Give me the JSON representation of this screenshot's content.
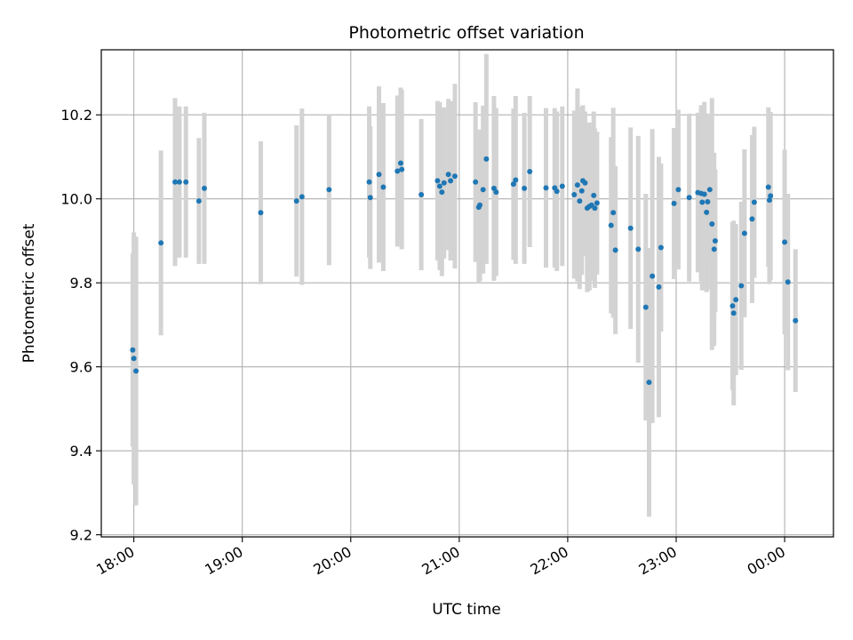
{
  "chart_data": {
    "type": "scatter",
    "title": "Photometric offset variation",
    "xlabel": "UTC time",
    "ylabel": "Photometric offset",
    "x_unit": "hours since 18:00 UTC",
    "xlim": [
      -0.3,
      6.45
    ],
    "ylim": [
      9.195,
      10.355
    ],
    "grid": true,
    "x_ticks": [
      {
        "value": 0,
        "label": "18:00"
      },
      {
        "value": 1,
        "label": "19:00"
      },
      {
        "value": 2,
        "label": "20:00"
      },
      {
        "value": 3,
        "label": "21:00"
      },
      {
        "value": 4,
        "label": "22:00"
      },
      {
        "value": 5,
        "label": "23:00"
      },
      {
        "value": 6,
        "label": "00:00"
      }
    ],
    "y_ticks": [
      {
        "value": 9.2,
        "label": "9.2"
      },
      {
        "value": 9.4,
        "label": "9.4"
      },
      {
        "value": 9.6,
        "label": "9.6"
      },
      {
        "value": 9.8,
        "label": "9.8"
      },
      {
        "value": 10.0,
        "label": "10.0"
      },
      {
        "value": 10.2,
        "label": "10.2"
      }
    ],
    "colors": {
      "marker": "#1f77b4",
      "errorbar": "#d3d3d3",
      "grid": "#b0b0b0"
    },
    "series": [
      {
        "name": "offset",
        "x": [
          -0.01,
          0.0,
          0.02,
          0.25,
          0.38,
          0.42,
          0.48,
          0.6,
          0.65,
          1.17,
          1.5,
          1.55,
          1.8,
          2.17,
          2.18,
          2.26,
          2.3,
          2.43,
          2.46,
          2.47,
          2.65,
          2.8,
          2.82,
          2.84,
          2.86,
          2.9,
          2.92,
          2.96,
          3.15,
          3.18,
          3.19,
          3.22,
          3.25,
          3.32,
          3.34,
          3.5,
          3.52,
          3.6,
          3.65,
          3.8,
          3.88,
          3.9,
          3.95,
          4.06,
          4.09,
          4.11,
          4.13,
          4.14,
          4.16,
          4.18,
          4.2,
          4.22,
          4.24,
          4.25,
          4.27,
          4.4,
          4.42,
          4.44,
          4.58,
          4.65,
          4.72,
          4.75,
          4.78,
          4.84,
          4.86,
          4.98,
          5.02,
          5.12,
          5.2,
          5.23,
          5.24,
          5.26,
          5.28,
          5.29,
          5.31,
          5.33,
          5.35,
          5.36,
          5.52,
          5.53,
          5.55,
          5.6,
          5.63,
          5.7,
          5.72,
          5.85,
          5.86,
          5.87,
          6.0,
          6.03,
          6.1
        ],
        "y": [
          9.64,
          9.62,
          9.59,
          9.895,
          10.04,
          10.04,
          10.04,
          9.995,
          10.025,
          9.967,
          9.995,
          10.005,
          10.022,
          10.04,
          10.003,
          10.058,
          10.028,
          10.066,
          10.085,
          10.07,
          10.01,
          10.043,
          10.03,
          10.016,
          10.038,
          10.058,
          10.043,
          10.054,
          10.04,
          9.98,
          9.985,
          10.022,
          10.095,
          10.025,
          10.016,
          10.035,
          10.045,
          10.025,
          10.065,
          10.026,
          10.026,
          10.018,
          10.03,
          10.01,
          10.033,
          9.995,
          10.019,
          10.043,
          10.038,
          9.978,
          9.982,
          9.985,
          10.008,
          9.978,
          9.99,
          9.937,
          9.967,
          9.878,
          9.93,
          9.88,
          9.742,
          9.563,
          9.816,
          9.79,
          9.884,
          9.989,
          10.022,
          10.003,
          10.015,
          10.013,
          9.992,
          10.011,
          9.968,
          9.993,
          10.022,
          9.94,
          9.88,
          9.9,
          9.745,
          9.728,
          9.76,
          9.793,
          9.918,
          9.952,
          9.992,
          10.028,
          9.997,
          10.007,
          9.897,
          9.802,
          9.71
        ],
        "yerr": [
          0.23,
          0.3,
          0.32,
          0.22,
          0.2,
          0.18,
          0.18,
          0.15,
          0.18,
          0.17,
          0.18,
          0.21,
          0.18,
          0.18,
          0.17,
          0.21,
          0.2,
          0.18,
          0.18,
          0.19,
          0.18,
          0.19,
          0.2,
          0.2,
          0.18,
          0.18,
          0.19,
          0.22,
          0.19,
          0.18,
          0.18,
          0.2,
          0.25,
          0.22,
          0.2,
          0.18,
          0.2,
          0.18,
          0.18,
          0.19,
          0.19,
          0.19,
          0.19,
          0.2,
          0.23,
          0.21,
          0.2,
          0.18,
          0.17,
          0.2,
          0.2,
          0.18,
          0.2,
          0.19,
          0.17,
          0.21,
          0.25,
          0.2,
          0.24,
          0.27,
          0.27,
          0.32,
          0.35,
          0.31,
          0.2,
          0.18,
          0.19,
          0.2,
          0.19,
          0.21,
          0.21,
          0.22,
          0.19,
          0.21,
          0.18,
          0.3,
          0.23,
          0.17,
          0.2,
          0.22,
          0.18,
          0.2,
          0.2,
          0.2,
          0.18,
          0.19,
          0.2,
          0.2,
          0.22,
          0.21,
          0.17
        ]
      }
    ]
  }
}
